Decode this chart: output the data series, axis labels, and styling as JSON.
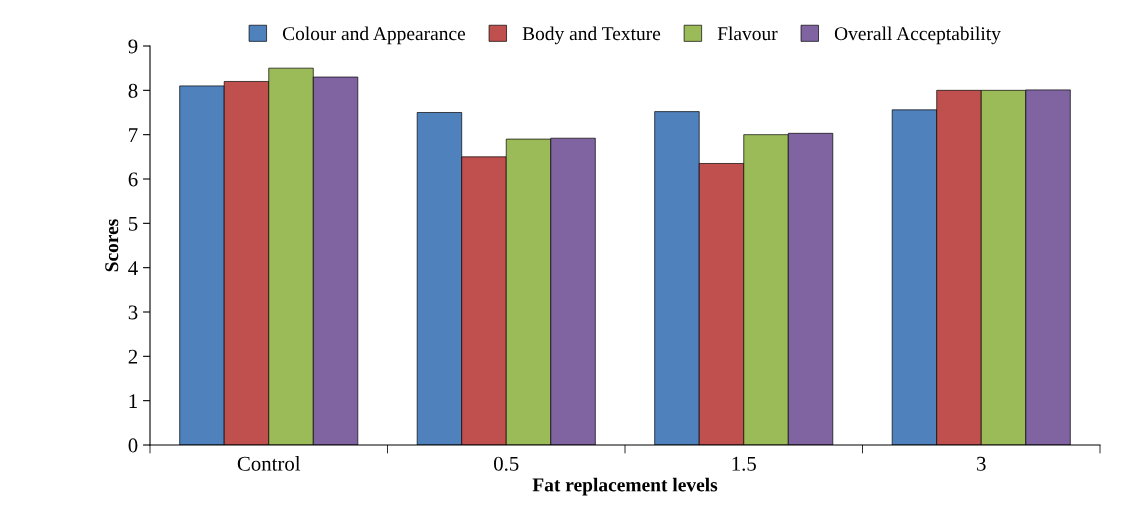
{
  "chart_data": {
    "type": "bar",
    "xlabel": "Fat replacement levels",
    "ylabel": "Scores",
    "categories": [
      "Control",
      "0.5",
      "1.5",
      "3"
    ],
    "series": [
      {
        "name": "Colour and Appearance",
        "color": "#4f81bd",
        "values": [
          8.1,
          7.5,
          7.52,
          7.56
        ]
      },
      {
        "name": "Body and Texture",
        "color": "#c0504d",
        "values": [
          8.2,
          6.5,
          6.35,
          8.0
        ]
      },
      {
        "name": "Flavour",
        "color": "#9bbb59",
        "values": [
          8.5,
          6.9,
          7.0,
          8.0
        ]
      },
      {
        "name": "Overall Acceptability",
        "color": "#8064a2",
        "values": [
          8.3,
          6.92,
          7.03,
          8.01
        ]
      }
    ],
    "ylim": [
      0,
      9
    ],
    "yticks": [
      0,
      1,
      2,
      3,
      4,
      5,
      6,
      7,
      8,
      9
    ],
    "grid": false,
    "legend": "top"
  }
}
